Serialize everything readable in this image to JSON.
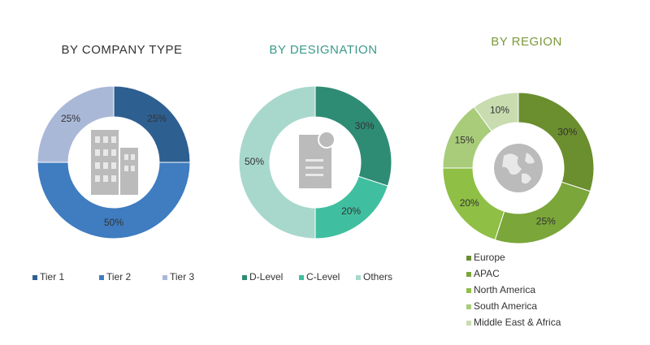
{
  "chart_data": [
    {
      "type": "pie",
      "title": "BY COMPANY TYPE",
      "categories": [
        "Tier 1",
        "Tier 2",
        "Tier 3"
      ],
      "values": [
        25,
        50,
        25
      ],
      "value_labels": [
        "25%",
        "50%",
        "25%"
      ],
      "colors": [
        "#2e5f91",
        "#3f7cc0",
        "#aab8d8"
      ]
    },
    {
      "type": "pie",
      "title": "BY DESIGNATION",
      "categories": [
        "D-Level",
        "C-Level",
        "Others"
      ],
      "values": [
        30,
        20,
        50
      ],
      "value_labels": [
        "30%",
        "20%",
        "50%"
      ],
      "colors": [
        "#2e8b74",
        "#3fbfa0",
        "#a8d8cc"
      ]
    },
    {
      "type": "pie",
      "title": "BY REGION",
      "categories": [
        "Europe",
        "APAC",
        "North America",
        "South America",
        "Middle East & Africa"
      ],
      "values": [
        30,
        25,
        20,
        15,
        10
      ],
      "value_labels": [
        "30%",
        "25%",
        "20%",
        "15%",
        "10%"
      ],
      "colors": [
        "#6b8e2e",
        "#7aa63a",
        "#8fbf45",
        "#a8cc7a",
        "#c8dcb0"
      ]
    }
  ]
}
